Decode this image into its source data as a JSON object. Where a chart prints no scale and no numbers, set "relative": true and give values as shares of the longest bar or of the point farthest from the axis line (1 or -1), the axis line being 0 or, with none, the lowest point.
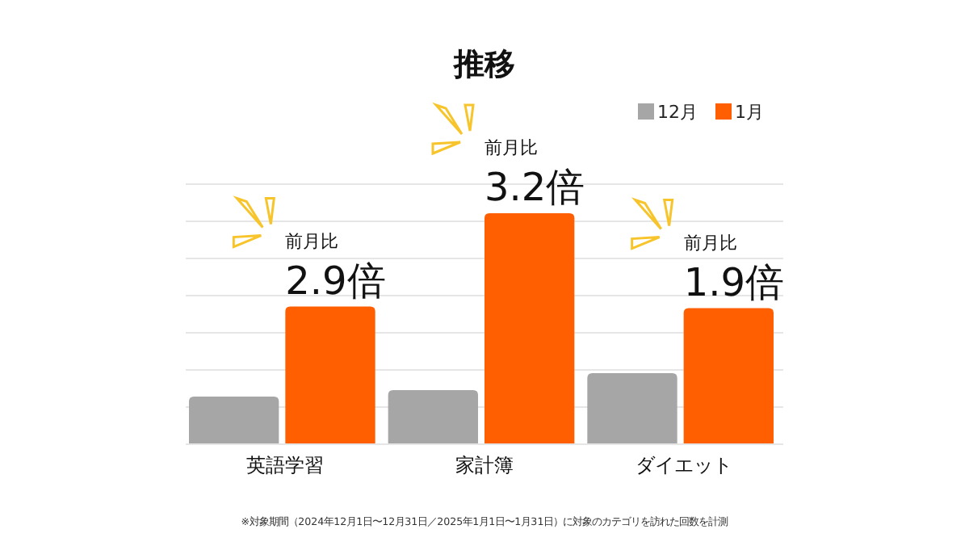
{
  "chart_data": {
    "type": "bar",
    "title": "推移",
    "relative": true,
    "categories": [
      "英語学習",
      "家計簿",
      "ダイエット"
    ],
    "series": [
      {
        "name": "12月",
        "color": "#a6a6a6",
        "values": [
          0.206,
          0.234,
          0.308
        ]
      },
      {
        "name": "1月",
        "color": "#ff5f00",
        "values": [
          0.596,
          1,
          0.589
        ]
      }
    ],
    "grid": "y",
    "legend": "top right",
    "annotations": [
      {
        "text": "前月比\n2.9倍",
        "x": "英語学習",
        "y": 0.596
      },
      {
        "text": "前月比\n3.2倍",
        "x": "家計簿",
        "y": 1
      },
      {
        "text": "前月比\n1.9倍",
        "x": "ダイエット",
        "y": 0.589
      },
      "※対象期間（2024年12月1日〜12月31日／2025年1月1日〜1月31日）に対象のカテゴリを訪れた回数を計測"
    ]
  }
}
